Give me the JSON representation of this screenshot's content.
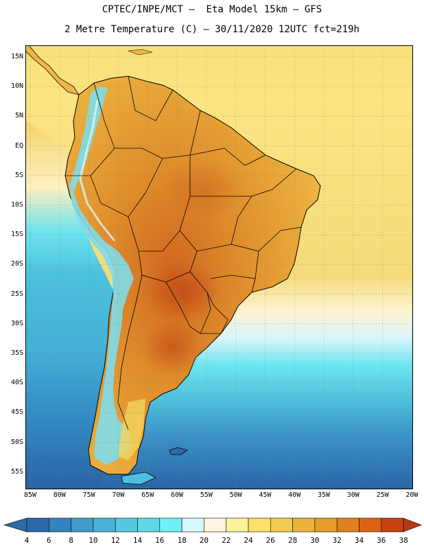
{
  "title": {
    "line1": "CPTEC/INPE/MCT –  Eta Model 15km – GFS",
    "line2": "2 Metre Temperature (C) – 30/11/2020 12UTC fct=219h"
  },
  "axes": {
    "lat_labels": [
      "15N",
      "10N",
      "5N",
      "EQ",
      "5S",
      "10S",
      "15S",
      "20S",
      "25S",
      "30S",
      "35S",
      "40S",
      "45S",
      "50S",
      "55S"
    ],
    "lon_labels": [
      "85W",
      "80W",
      "75W",
      "70W",
      "65W",
      "60W",
      "55W",
      "50W",
      "45W",
      "40W",
      "35W",
      "30W",
      "25W",
      "20W"
    ]
  },
  "colorbar": {
    "labels": [
      "4",
      "6",
      "8",
      "10",
      "12",
      "14",
      "16",
      "18",
      "20",
      "22",
      "24",
      "26",
      "28",
      "30",
      "32",
      "34",
      "36",
      "38"
    ],
    "colors": [
      "#2a6aab",
      "#3483be",
      "#3f9ccb",
      "#4ab4d7",
      "#56c8e0",
      "#5fd8e6",
      "#6ef2f6",
      "#d7f7fb",
      "#fef6e0",
      "#fef29a",
      "#fbe06a",
      "#f5cc52",
      "#ecb33c",
      "#e89d2a",
      "#e0801e",
      "#da6414",
      "#c64412"
    ],
    "low_arrow_color": "#2f6aa0",
    "high_arrow_color": "#b33a10"
  },
  "colors": {
    "land_hot": "#d06a22",
    "land_warm": "#e3a23a",
    "land_mild": "#f5cc52",
    "andes_cold": "#6ad6ea",
    "ocean_warm": "#f8e07a",
    "ocean_cool": "#48b4d8",
    "ocean_cold": "#2d6cac",
    "boundary": "#000000"
  }
}
